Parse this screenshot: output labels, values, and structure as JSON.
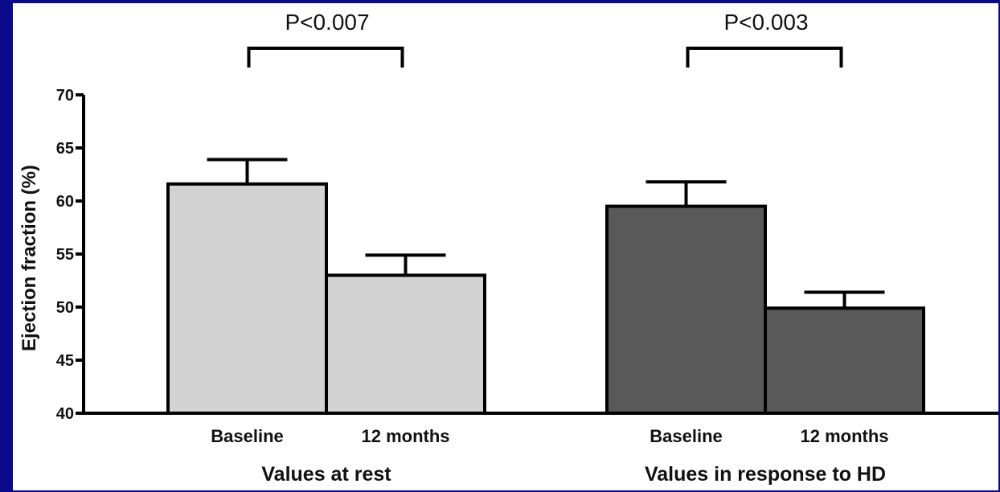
{
  "chart_data": {
    "type": "bar",
    "ylabel": "Ejection fraction (%)",
    "ylim": [
      40,
      70
    ],
    "yticks": [
      40,
      45,
      50,
      55,
      60,
      65,
      70
    ],
    "grid": false,
    "groups": [
      {
        "label": "Values at rest",
        "fill_color": "#d3d3d3",
        "significance": "P<0.007",
        "bars": [
          {
            "category": "Baseline",
            "value": 61.6,
            "error": 2.3
          },
          {
            "category": "12 months",
            "value": 53.0,
            "error": 1.9
          }
        ]
      },
      {
        "label": "Values in response to HD",
        "fill_color": "#595959",
        "significance": "P<0.003",
        "bars": [
          {
            "category": "Baseline",
            "value": 59.5,
            "error": 2.3
          },
          {
            "category": "12 months",
            "value": 49.9,
            "error": 1.5
          }
        ]
      }
    ]
  },
  "colors": {
    "background": "#0a0a8a",
    "panel": "#ffffff",
    "axis": "#000000"
  }
}
